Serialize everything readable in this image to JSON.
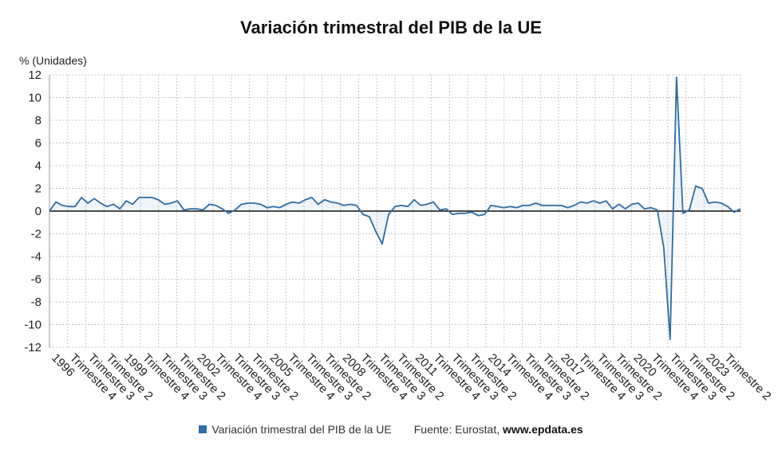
{
  "chart_data": {
    "type": "line",
    "title": "Variación trimestral del PIB de la UE",
    "ylabel": "% (Unidades)",
    "ylim": [
      -12,
      12
    ],
    "yticks": [
      12,
      10,
      8,
      6,
      4,
      2,
      0,
      -2,
      -4,
      -6,
      -8,
      -10,
      -12
    ],
    "grid": true,
    "x_labels": [
      "1996",
      "Trimestre 4",
      "Trimestre 3",
      "Trimestre 2",
      "1999",
      "Trimestre 4",
      "Trimestre 3",
      "Trimestre 2",
      "2002",
      "Trimestre 4",
      "Trimestre 3",
      "Trimestre 2",
      "2005",
      "Trimestre 4",
      "Trimestre 3",
      "Trimestre 2",
      "2008",
      "Trimestre 4",
      "Trimestre 3",
      "Trimestre 2",
      "2011",
      "Trimestre 4",
      "Trimestre 3",
      "Trimestre 2",
      "2014",
      "Trimestre 4",
      "Trimestre 3",
      "Trimestre 2",
      "2017",
      "Trimestre 4",
      "Trimestre 3",
      "Trimestre 2",
      "2020",
      "Trimestre 4",
      "Trimestre 3",
      "Trimestre 2",
      "2023",
      "Trimestre 2"
    ],
    "series": [
      {
        "name": "Variación trimestral del PIB de la UE",
        "color": "#2e6da4",
        "values": [
          0.0,
          0.8,
          0.5,
          0.4,
          0.4,
          1.2,
          0.7,
          1.1,
          0.7,
          0.4,
          0.6,
          0.2,
          0.9,
          0.6,
          1.2,
          1.2,
          1.2,
          1.0,
          0.6,
          0.7,
          0.9,
          0.1,
          0.2,
          0.2,
          0.1,
          0.6,
          0.5,
          0.2,
          -0.2,
          0.1,
          0.6,
          0.7,
          0.7,
          0.6,
          0.3,
          0.4,
          0.3,
          0.6,
          0.8,
          0.7,
          1.0,
          1.2,
          0.6,
          1.0,
          0.8,
          0.7,
          0.5,
          0.6,
          0.5,
          -0.3,
          -0.5,
          -1.8,
          -2.9,
          -0.3,
          0.4,
          0.5,
          0.4,
          1.0,
          0.5,
          0.6,
          0.8,
          0.1,
          0.2,
          -0.3,
          -0.2,
          -0.2,
          -0.1,
          -0.4,
          -0.3,
          0.5,
          0.4,
          0.3,
          0.4,
          0.3,
          0.5,
          0.5,
          0.7,
          0.5,
          0.5,
          0.5,
          0.5,
          0.3,
          0.5,
          0.8,
          0.7,
          0.9,
          0.7,
          0.9,
          0.2,
          0.6,
          0.2,
          0.6,
          0.7,
          0.2,
          0.3,
          0.1,
          -3.2,
          -11.3,
          11.8,
          -0.2,
          0.1,
          2.2,
          2.0,
          0.7,
          0.8,
          0.7,
          0.4,
          -0.1,
          0.2
        ]
      }
    ]
  },
  "legend": {
    "series_label": "Variación trimestral del PIB de la UE",
    "source_label": "Fuente: Eurostat,",
    "site": "www.epdata.es"
  }
}
